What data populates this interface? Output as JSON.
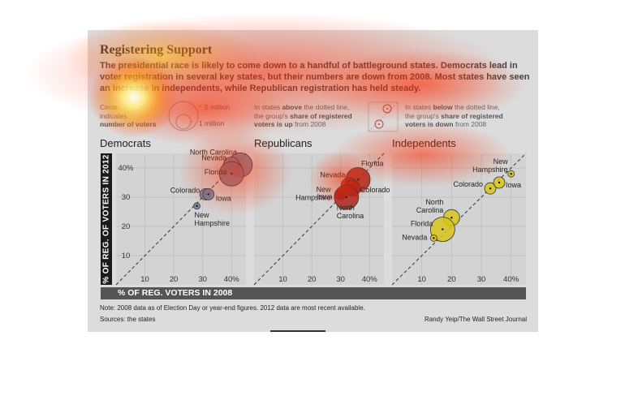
{
  "title": "Registering Support",
  "dek": "The presidential race is likely to come down to a handful of battleground states. Democrats lead in voter registration in several key states, but their numbers are down from 2008. Most states have seen an increase in independents, while Republican registration has held steady.",
  "key": {
    "circle_note_a": "Circle",
    "circle_note_b": "indicates",
    "circle_note_c": "number of voters",
    "five_million": "5 million",
    "one_million": "1 million",
    "above_text_1": "In states",
    "above_text_2": "above",
    "above_text_3": "the dotted line,",
    "above_text_4": "the group's",
    "above_text_5": "share of registered",
    "above_text_6": "voters is up",
    "above_text_7": "from 2008",
    "below_text_1": "In states",
    "below_text_2": "below",
    "below_text_3": "the dotted line,",
    "below_text_4": "the group's",
    "below_text_5": "share of registered",
    "below_text_6": "voters is down",
    "below_text_7": "from 2008"
  },
  "panels": {
    "dem": "Democrats",
    "rep": "Republicans",
    "ind": "Independents"
  },
  "ylabel": "% OF REG. OF VOTERS IN 2012",
  "xlabel": "% OF REG. VOTERS IN 2008",
  "note": "Note: 2008 data as of Election Day or year-end figures. 2012 data are most recent available.",
  "sources": "Sources: the states",
  "credit": "Randy Yeip/The Wall Street Journal",
  "colors": {
    "democrats": "#6f7f9e",
    "republicans": "#a8261f",
    "independents": "#d8c41a",
    "panel_bg": "#dcdcdc",
    "grid": "#bdbdbd"
  },
  "chart_data": [
    {
      "type": "scatter",
      "title": "Democrats",
      "xlabel": "% OF REG. VOTERS IN 2008",
      "ylabel": "% OF REG. OF VOTERS IN 2012",
      "xlim": [
        0,
        45
      ],
      "ylim": [
        0,
        45
      ],
      "x_ticks": [
        "10",
        "20",
        "30",
        "40%"
      ],
      "y_ticks": [
        "10",
        "20",
        "30",
        "40%"
      ],
      "reference_line": "y = x (dotted)",
      "points": [
        {
          "label": "North Carolina",
          "x": 43,
          "y": 41,
          "size": "large"
        },
        {
          "label": "Nevada",
          "x": 40,
          "y": 41,
          "size": "medium"
        },
        {
          "label": "Florida",
          "x": 40,
          "y": 38,
          "size": "large"
        },
        {
          "label": "Colorado",
          "x": 31,
          "y": 31,
          "size": "small"
        },
        {
          "label": "Iowa",
          "x": 32,
          "y": 31,
          "size": "small"
        },
        {
          "label": "New Hampshire",
          "x": 28,
          "y": 27,
          "size": "tiny"
        }
      ]
    },
    {
      "type": "scatter",
      "title": "Republicans",
      "xlabel": "% OF REG. VOTERS IN 2008",
      "ylabel": "% OF REG. OF VOTERS IN 2012",
      "xlim": [
        0,
        45
      ],
      "ylim": [
        0,
        45
      ],
      "x_ticks": [
        "10",
        "20",
        "30",
        "40%"
      ],
      "reference_line": "y = x (dotted)",
      "points": [
        {
          "label": "Florida",
          "x": 36,
          "y": 36,
          "size": "large"
        },
        {
          "label": "Nevada",
          "x": 33,
          "y": 34,
          "size": "medium"
        },
        {
          "label": "New Hampshire",
          "x": 30,
          "y": 31,
          "size": "tiny"
        },
        {
          "label": "Iowa",
          "x": 30,
          "y": 31,
          "size": "small"
        },
        {
          "label": "Colorado",
          "x": 34,
          "y": 33,
          "size": "medium"
        },
        {
          "label": "North Carolina",
          "x": 32,
          "y": 30,
          "size": "large"
        }
      ]
    },
    {
      "type": "scatter",
      "title": "Independents",
      "xlabel": "% OF REG. VOTERS IN 2008",
      "ylabel": "% OF REG. OF VOTERS IN 2012",
      "xlim": [
        0,
        45
      ],
      "ylim": [
        0,
        45
      ],
      "x_ticks": [
        "10",
        "20",
        "30",
        "40%"
      ],
      "reference_line": "y = x (dotted)",
      "points": [
        {
          "label": "New Hampshire",
          "x": 40,
          "y": 38,
          "size": "tiny"
        },
        {
          "label": "Colorado",
          "x": 33,
          "y": 33,
          "size": "small"
        },
        {
          "label": "Iowa",
          "x": 36,
          "y": 35,
          "size": "small"
        },
        {
          "label": "North Carolina",
          "x": 20,
          "y": 23,
          "size": "medium"
        },
        {
          "label": "Florida",
          "x": 17,
          "y": 19,
          "size": "large"
        },
        {
          "label": "Nevada",
          "x": 14,
          "y": 16,
          "size": "tiny"
        }
      ]
    }
  ]
}
